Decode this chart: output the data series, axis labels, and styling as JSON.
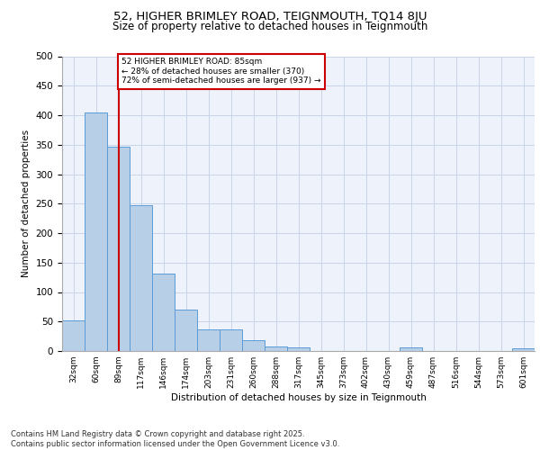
{
  "title1": "52, HIGHER BRIMLEY ROAD, TEIGNMOUTH, TQ14 8JU",
  "title2": "Size of property relative to detached houses in Teignmouth",
  "xlabel": "Distribution of detached houses by size in Teignmouth",
  "ylabel": "Number of detached properties",
  "footer1": "Contains HM Land Registry data © Crown copyright and database right 2025.",
  "footer2": "Contains public sector information licensed under the Open Government Licence v3.0.",
  "annotation_line1": "52 HIGHER BRIMLEY ROAD: 85sqm",
  "annotation_line2": "← 28% of detached houses are smaller (370)",
  "annotation_line3": "72% of semi-detached houses are larger (937) →",
  "bar_values": [
    52,
    405,
    346,
    247,
    131,
    70,
    36,
    36,
    18,
    7,
    6,
    0,
    0,
    0,
    0,
    6,
    0,
    0,
    0,
    0,
    4
  ],
  "categories": [
    "32sqm",
    "60sqm",
    "89sqm",
    "117sqm",
    "146sqm",
    "174sqm",
    "203sqm",
    "231sqm",
    "260sqm",
    "288sqm",
    "317sqm",
    "345sqm",
    "373sqm",
    "402sqm",
    "430sqm",
    "459sqm",
    "487sqm",
    "516sqm",
    "544sqm",
    "573sqm",
    "601sqm"
  ],
  "bar_color": "#b8cfe8",
  "bar_edge_color": "#5b9bd5",
  "vline_x": 2,
  "vline_color": "#cc0000",
  "ylim": [
    0,
    500
  ],
  "yticks": [
    0,
    50,
    100,
    150,
    200,
    250,
    300,
    350,
    400,
    450,
    500
  ],
  "annotation_box_color": "#cc0000",
  "grid_color": "#c8d4e8",
  "bg_color": "#edf2fb"
}
